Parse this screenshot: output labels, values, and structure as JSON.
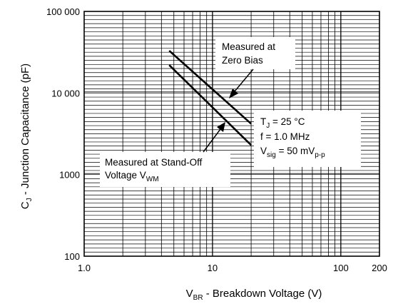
{
  "chart_data": {
    "type": "line",
    "title": "",
    "xscale": "log",
    "yscale": "log",
    "xlim": [
      1.0,
      200
    ],
    "ylim": [
      100,
      100000
    ],
    "grid": true,
    "xticks": [
      {
        "value": 1,
        "label": "1.0"
      },
      {
        "value": 10,
        "label": "10"
      },
      {
        "value": 100,
        "label": "100"
      },
      {
        "value": 200,
        "label": "200"
      }
    ],
    "yticks": [
      {
        "value": 100,
        "label": "100"
      },
      {
        "value": 1000,
        "label": "1000"
      },
      {
        "value": 10000,
        "label": "10 000"
      },
      {
        "value": 100000,
        "label": "100 000"
      }
    ],
    "xlabel": {
      "main": "V",
      "sub": "BR",
      "rest": " - Breakdown Voltage (V)"
    },
    "ylabel": {
      "main": "C",
      "sub": "J",
      "rest": " - Junction Capacitance (pF)"
    },
    "series": [
      {
        "name": "Measured at Zero Bias",
        "x": [
          4.6,
          20
        ],
        "y": [
          33000,
          4200
        ]
      },
      {
        "name": "Measured at Stand-Off Voltage VWM",
        "x": [
          4.6,
          20
        ],
        "y": [
          22000,
          2300
        ]
      }
    ],
    "annotations": {
      "zero_bias": {
        "line1": "Measured at",
        "line2": "Zero Bias"
      },
      "standoff": {
        "line1": "Measured at Stand-Off",
        "line2_main": "Voltage V",
        "line2_sub": "WM"
      },
      "conditions": {
        "tj_main": "T",
        "tj_sub": "J",
        "tj_rest": " = 25 °C",
        "freq": "f = 1.0 MHz",
        "vsig_main": "V",
        "vsig_sub": "sig",
        "vsig_rest": " = 50 mV",
        "vsig_sub2": "p-p"
      }
    }
  }
}
